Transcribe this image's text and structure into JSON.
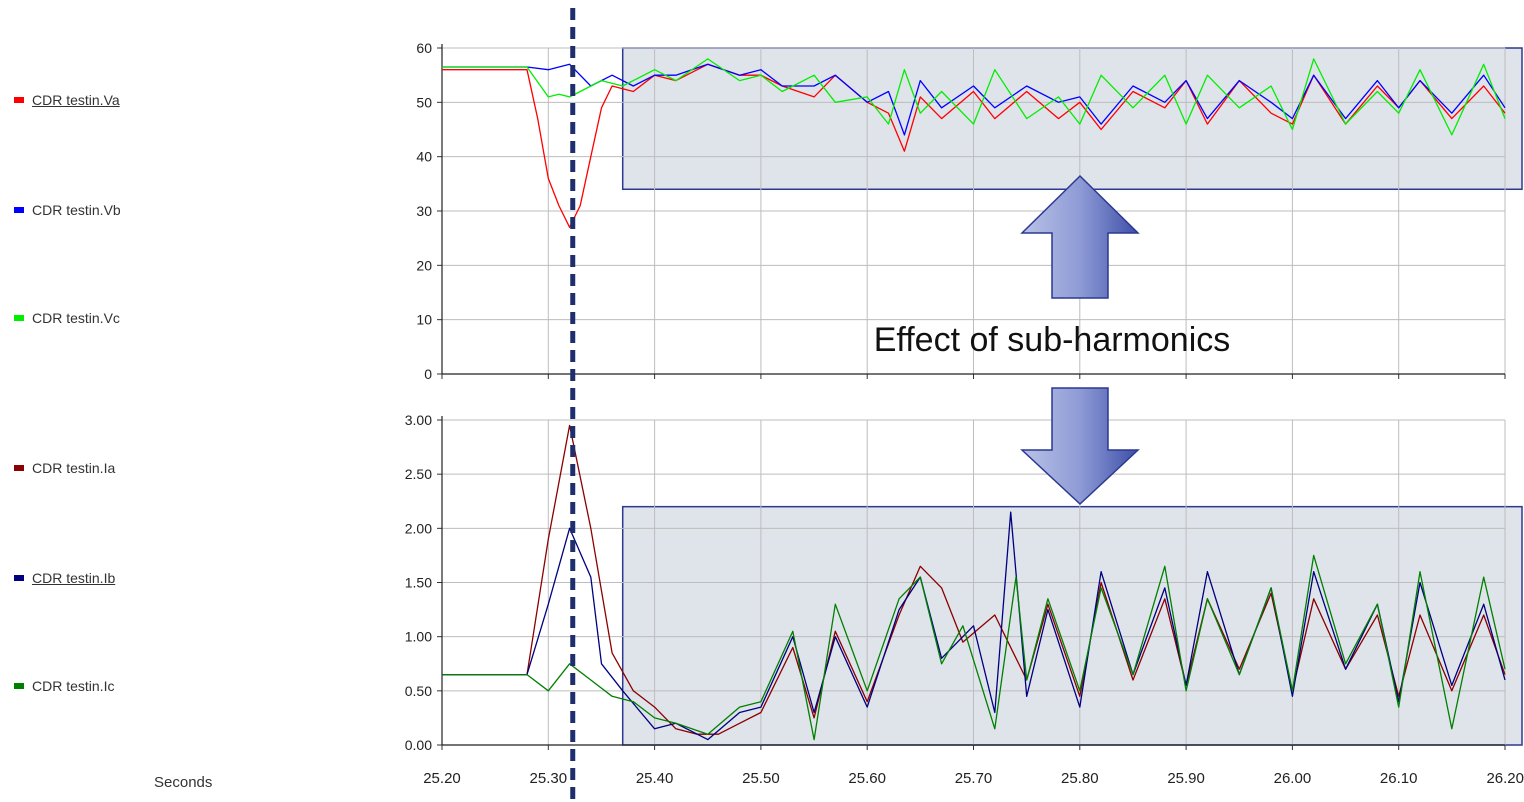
{
  "legend": {
    "voltage": [
      {
        "label": "CDR testin.Va",
        "color": "#ff0000",
        "underlined": true
      },
      {
        "label": "CDR testin.Vb",
        "color": "#0000ff",
        "underlined": false
      },
      {
        "label": "CDR testin.Vc",
        "color": "#00ee00",
        "underlined": false
      }
    ],
    "current": [
      {
        "label": "CDR testin.Ia",
        "color": "#8b0000",
        "underlined": false
      },
      {
        "label": "CDR testin.Ib",
        "color": "#000080",
        "underlined": true
      },
      {
        "label": "CDR testin.Ic",
        "color": "#008000",
        "underlined": false
      }
    ]
  },
  "x_axis_label": "Seconds",
  "annotation": "Effect of sub-harmonics",
  "event_marker_x": 25.323,
  "chart_data": [
    {
      "type": "line",
      "xlim": [
        25.2,
        26.2
      ],
      "ylim": [
        0,
        60
      ],
      "yticks": [
        "0",
        "10",
        "20",
        "30",
        "40",
        "50",
        "60"
      ],
      "grid": true,
      "highlight_x_range": [
        25.37,
        26.2
      ],
      "highlight_y_range": [
        34,
        60
      ],
      "series": [
        {
          "name": "CDR testin.Va",
          "color": "#ff0000",
          "x": [
            25.2,
            25.28,
            25.29,
            25.3,
            25.31,
            25.32,
            25.33,
            25.34,
            25.35,
            25.36,
            25.38,
            25.4,
            25.42,
            25.45,
            25.48,
            25.5,
            25.52,
            25.55,
            25.57,
            25.6,
            25.62,
            25.635,
            25.65,
            25.67,
            25.7,
            25.72,
            25.75,
            25.78,
            25.8,
            25.82,
            25.85,
            25.88,
            25.9,
            25.92,
            25.95,
            25.98,
            26.0,
            26.02,
            26.05,
            26.08,
            26.1,
            26.12,
            26.15,
            26.18,
            26.2
          ],
          "y": [
            56,
            56,
            47,
            36,
            31,
            27,
            31,
            40,
            49,
            53,
            52,
            55,
            54,
            57,
            55,
            55,
            53,
            51,
            55,
            50,
            48,
            41,
            51,
            47,
            52,
            47,
            52,
            47,
            50,
            45,
            52,
            49,
            54,
            46,
            54,
            48,
            46,
            55,
            46,
            53,
            49,
            54,
            47,
            53,
            48
          ]
        },
        {
          "name": "CDR testin.Vb",
          "color": "#0000ff",
          "x": [
            25.2,
            25.28,
            25.3,
            25.32,
            25.34,
            25.36,
            25.38,
            25.4,
            25.42,
            25.45,
            25.48,
            25.5,
            25.52,
            25.55,
            25.57,
            25.6,
            25.62,
            25.635,
            25.65,
            25.67,
            25.7,
            25.72,
            25.75,
            25.78,
            25.8,
            25.82,
            25.85,
            25.88,
            25.9,
            25.92,
            25.95,
            25.98,
            26.0,
            26.02,
            26.05,
            26.08,
            26.1,
            26.12,
            26.15,
            26.18,
            26.2
          ],
          "y": [
            56.5,
            56.5,
            56,
            57,
            53,
            55,
            53,
            55,
            55,
            57,
            55,
            56,
            53,
            53,
            55,
            50,
            52,
            44,
            54,
            49,
            53,
            49,
            53,
            50,
            51,
            46,
            53,
            50,
            54,
            47,
            54,
            50,
            47,
            55,
            47,
            54,
            49,
            54,
            48,
            55,
            49
          ]
        },
        {
          "name": "CDR testin.Vc",
          "color": "#00ee00",
          "x": [
            25.2,
            25.28,
            25.3,
            25.31,
            25.32,
            25.33,
            25.35,
            25.37,
            25.4,
            25.42,
            25.45,
            25.48,
            25.5,
            25.52,
            25.55,
            25.57,
            25.6,
            25.62,
            25.635,
            25.65,
            25.67,
            25.7,
            25.72,
            25.75,
            25.78,
            25.8,
            25.82,
            25.85,
            25.88,
            25.9,
            25.92,
            25.95,
            25.98,
            26.0,
            26.02,
            26.05,
            26.08,
            26.1,
            26.12,
            26.15,
            26.18,
            26.2
          ],
          "y": [
            56.5,
            56.5,
            51,
            51.5,
            51,
            52,
            54,
            53,
            56,
            54,
            58,
            54,
            55,
            52,
            55,
            50,
            51,
            46,
            56,
            48,
            52,
            46,
            56,
            47,
            51,
            46,
            55,
            49,
            55,
            46,
            55,
            49,
            53,
            45,
            58,
            46,
            52,
            48,
            56,
            44,
            57,
            47
          ]
        }
      ]
    },
    {
      "type": "line",
      "xlim": [
        25.2,
        26.2
      ],
      "ylim": [
        0,
        3
      ],
      "yticks": [
        "0.00",
        "0.50",
        "1.00",
        "1.50",
        "2.00",
        "2.50",
        "3.00"
      ],
      "xticks": [
        "25.20",
        "25.30",
        "25.40",
        "25.50",
        "25.60",
        "25.70",
        "25.80",
        "25.90",
        "26.00",
        "26.10",
        "26.20"
      ],
      "grid": true,
      "highlight_x_range": [
        25.37,
        26.2
      ],
      "highlight_y_range": [
        0,
        2.2
      ],
      "series": [
        {
          "name": "CDR testin.Ia",
          "color": "#8b0000",
          "x": [
            25.2,
            25.28,
            25.3,
            25.32,
            25.34,
            25.36,
            25.38,
            25.4,
            25.42,
            25.44,
            25.46,
            25.48,
            25.5,
            25.53,
            25.55,
            25.57,
            25.6,
            25.63,
            25.65,
            25.67,
            25.69,
            25.72,
            25.75,
            25.77,
            25.8,
            25.82,
            25.85,
            25.88,
            25.9,
            25.92,
            25.95,
            25.98,
            26.0,
            26.02,
            26.05,
            26.08,
            26.1,
            26.12,
            26.15,
            26.18,
            26.2
          ],
          "y": [
            0.65,
            0.65,
            1.9,
            2.95,
            2.0,
            0.85,
            0.5,
            0.35,
            0.15,
            0.1,
            0.1,
            0.2,
            0.3,
            0.9,
            0.25,
            1.05,
            0.4,
            1.2,
            1.65,
            1.45,
            0.95,
            1.2,
            0.6,
            1.3,
            0.45,
            1.5,
            0.6,
            1.35,
            0.55,
            1.35,
            0.7,
            1.4,
            0.5,
            1.35,
            0.7,
            1.2,
            0.45,
            1.2,
            0.5,
            1.2,
            0.65
          ]
        },
        {
          "name": "CDR testin.Ib",
          "color": "#000080",
          "x": [
            25.2,
            25.28,
            25.3,
            25.32,
            25.34,
            25.35,
            25.37,
            25.4,
            25.42,
            25.45,
            25.48,
            25.5,
            25.53,
            25.55,
            25.57,
            25.6,
            25.63,
            25.65,
            25.67,
            25.7,
            25.72,
            25.735,
            25.75,
            25.77,
            25.8,
            25.82,
            25.85,
            25.88,
            25.9,
            25.92,
            25.95,
            25.98,
            26.0,
            26.02,
            26.05,
            26.08,
            26.1,
            26.12,
            26.15,
            26.18,
            26.2
          ],
          "y": [
            0.65,
            0.65,
            1.3,
            2.0,
            1.55,
            0.75,
            0.5,
            0.15,
            0.2,
            0.05,
            0.3,
            0.35,
            1.0,
            0.3,
            1.0,
            0.35,
            1.25,
            1.55,
            0.8,
            1.1,
            0.3,
            2.15,
            0.45,
            1.25,
            0.35,
            1.6,
            0.65,
            1.45,
            0.55,
            1.6,
            0.65,
            1.45,
            0.45,
            1.6,
            0.7,
            1.3,
            0.4,
            1.5,
            0.55,
            1.3,
            0.6
          ]
        },
        {
          "name": "CDR testin.Ic",
          "color": "#008000",
          "x": [
            25.2,
            25.28,
            25.3,
            25.32,
            25.34,
            25.36,
            25.38,
            25.4,
            25.42,
            25.45,
            25.48,
            25.5,
            25.53,
            25.55,
            25.57,
            25.6,
            25.63,
            25.65,
            25.67,
            25.69,
            25.72,
            25.74,
            25.75,
            25.77,
            25.8,
            25.82,
            25.85,
            25.88,
            25.9,
            25.92,
            25.95,
            25.98,
            26.0,
            26.02,
            26.05,
            26.08,
            26.1,
            26.12,
            26.15,
            26.18,
            26.2
          ],
          "y": [
            0.65,
            0.65,
            0.5,
            0.75,
            0.6,
            0.45,
            0.4,
            0.25,
            0.2,
            0.1,
            0.35,
            0.4,
            1.05,
            0.05,
            1.3,
            0.5,
            1.35,
            1.55,
            0.75,
            1.1,
            0.15,
            1.55,
            0.6,
            1.35,
            0.5,
            1.45,
            0.65,
            1.65,
            0.5,
            1.35,
            0.65,
            1.45,
            0.5,
            1.75,
            0.75,
            1.3,
            0.35,
            1.6,
            0.15,
            1.55,
            0.7
          ]
        }
      ]
    }
  ]
}
